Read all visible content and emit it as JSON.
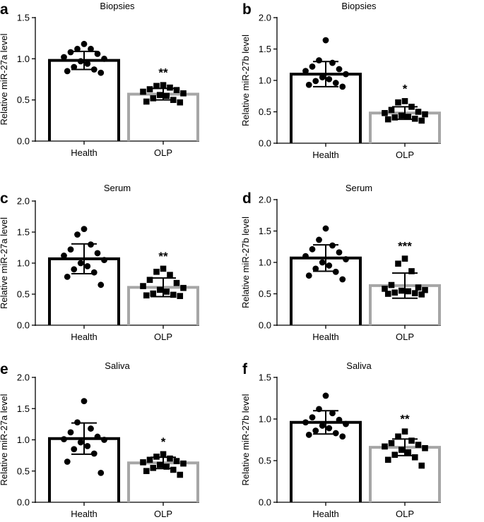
{
  "colors": {
    "health": "#000000",
    "olp": "#a6a6a6",
    "axis": "#000000"
  },
  "chart_data": [
    {
      "type": "bar",
      "panel": "a",
      "title": "Biopsies",
      "ylabel": "Relative miR-27a level",
      "ylim": [
        0,
        1.5
      ],
      "yticks": [
        "0.0",
        "0.5",
        "1.0",
        "1.5"
      ],
      "categories": [
        "Health",
        "OLP"
      ],
      "values": [
        0.98,
        0.57
      ],
      "error": [
        0.11,
        0.07
      ],
      "significance": "**",
      "points": [
        [
          1.18,
          1.12,
          1.12,
          1.08,
          1.06,
          1.02,
          1.0,
          0.97,
          0.94,
          0.9,
          0.87,
          0.85,
          0.83
        ],
        [
          0.68,
          0.67,
          0.65,
          0.63,
          0.62,
          0.6,
          0.58,
          0.56,
          0.55,
          0.52,
          0.5,
          0.48,
          0.47
        ]
      ]
    },
    {
      "type": "bar",
      "panel": "b",
      "title": "Biopsies",
      "ylabel": "Relative miR-27b level",
      "ylim": [
        0,
        2.0
      ],
      "yticks": [
        "0.0",
        "0.5",
        "1.0",
        "1.5",
        "2.0"
      ],
      "categories": [
        "Health",
        "OLP"
      ],
      "values": [
        1.1,
        0.48
      ],
      "error": [
        0.2,
        0.1
      ],
      "significance": "*",
      "points": [
        [
          1.64,
          1.32,
          1.28,
          1.22,
          1.18,
          1.15,
          1.1,
          1.05,
          1.02,
          0.99,
          0.96,
          0.93,
          0.9
        ],
        [
          0.67,
          0.65,
          0.58,
          0.53,
          0.5,
          0.48,
          0.46,
          0.44,
          0.42,
          0.41,
          0.39,
          0.38,
          0.36
        ]
      ]
    },
    {
      "type": "bar",
      "panel": "c",
      "title": "Serum",
      "ylabel": "Relative miR-27a level",
      "ylim": [
        0,
        2.0
      ],
      "yticks": [
        "0.0",
        "0.5",
        "1.0",
        "1.5",
        "2.0"
      ],
      "categories": [
        "Health",
        "OLP"
      ],
      "values": [
        1.07,
        0.61
      ],
      "error": [
        0.24,
        0.15
      ],
      "significance": "**",
      "points": [
        [
          1.55,
          1.46,
          1.3,
          1.22,
          1.16,
          1.12,
          1.05,
          1.0,
          0.95,
          0.9,
          0.85,
          0.78,
          0.65
        ],
        [
          0.91,
          0.86,
          0.81,
          0.73,
          0.68,
          0.63,
          0.6,
          0.57,
          0.54,
          0.51,
          0.49,
          0.48,
          0.47
        ]
      ]
    },
    {
      "type": "bar",
      "panel": "d",
      "title": "Serum",
      "ylabel": "Relative miR-27b level",
      "ylim": [
        0,
        2.0
      ],
      "yticks": [
        "0.0",
        "0.5",
        "1.0",
        "1.5",
        "2.0"
      ],
      "categories": [
        "Health",
        "OLP"
      ],
      "values": [
        1.07,
        0.63
      ],
      "error": [
        0.21,
        0.2
      ],
      "significance": "***",
      "points": [
        [
          1.54,
          1.36,
          1.27,
          1.21,
          1.16,
          1.1,
          1.05,
          1.0,
          0.95,
          0.9,
          0.85,
          0.79,
          0.73
        ],
        [
          1.06,
          0.98,
          0.86,
          0.64,
          0.6,
          0.58,
          0.56,
          0.55,
          0.54,
          0.52,
          0.51,
          0.5,
          0.49
        ]
      ]
    },
    {
      "type": "bar",
      "panel": "e",
      "title": "Saliva",
      "ylabel": "Relative miR-27a level",
      "ylim": [
        0,
        2.0
      ],
      "yticks": [
        "0.0",
        "0.5",
        "1.0",
        "1.5",
        "2.0"
      ],
      "categories": [
        "Health",
        "OLP"
      ],
      "values": [
        1.02,
        0.63
      ],
      "error": [
        0.25,
        0.09
      ],
      "significance": "*",
      "points": [
        [
          1.62,
          1.28,
          1.18,
          1.12,
          1.05,
          1.01,
          1.0,
          0.96,
          0.9,
          0.85,
          0.78,
          0.65,
          0.47
        ],
        [
          0.77,
          0.73,
          0.7,
          0.68,
          0.66,
          0.64,
          0.62,
          0.6,
          0.57,
          0.55,
          0.52,
          0.5,
          0.44
        ]
      ]
    },
    {
      "type": "bar",
      "panel": "f",
      "title": "Saliva",
      "ylabel": "Relative miR-27b level",
      "ylim": [
        0,
        1.5
      ],
      "yticks": [
        "0.0",
        "0.5",
        "1.0",
        "1.5"
      ],
      "categories": [
        "Health",
        "OLP"
      ],
      "values": [
        0.96,
        0.66
      ],
      "error": [
        0.14,
        0.1
      ],
      "significance": "**",
      "points": [
        [
          1.28,
          1.12,
          1.07,
          1.02,
          0.99,
          0.96,
          0.94,
          0.92,
          0.89,
          0.86,
          0.83,
          0.81,
          0.79
        ],
        [
          0.85,
          0.79,
          0.74,
          0.71,
          0.69,
          0.67,
          0.65,
          0.63,
          0.6,
          0.57,
          0.54,
          0.51,
          0.44
        ]
      ]
    }
  ]
}
